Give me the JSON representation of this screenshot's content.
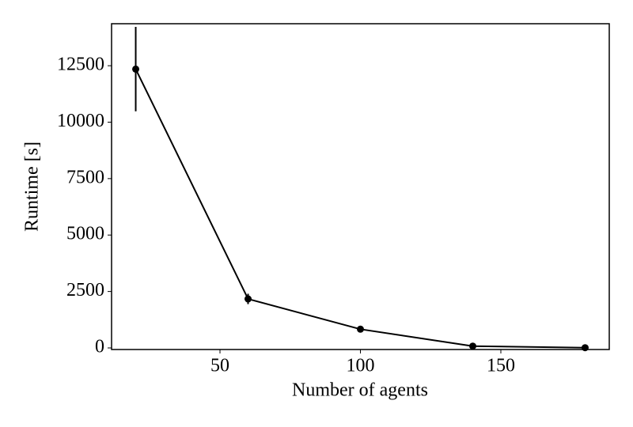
{
  "chart_data": {
    "type": "line",
    "xlabel": "Number of agents",
    "ylabel": "Runtime [s]",
    "x": [
      20,
      60,
      100,
      140,
      180
    ],
    "series": [
      {
        "color": "#000000",
        "values": [
          12350,
          2170,
          830,
          80,
          10
        ],
        "errors": [
          1870,
          230,
          60,
          30,
          10
        ]
      }
    ],
    "xlim": [
      11.4,
      188.6
    ],
    "xticks": [
      50,
      100,
      150
    ],
    "ylim": [
      -70,
      14360
    ],
    "yticks": [
      0,
      2500,
      5000,
      7500,
      10000,
      12500
    ]
  }
}
